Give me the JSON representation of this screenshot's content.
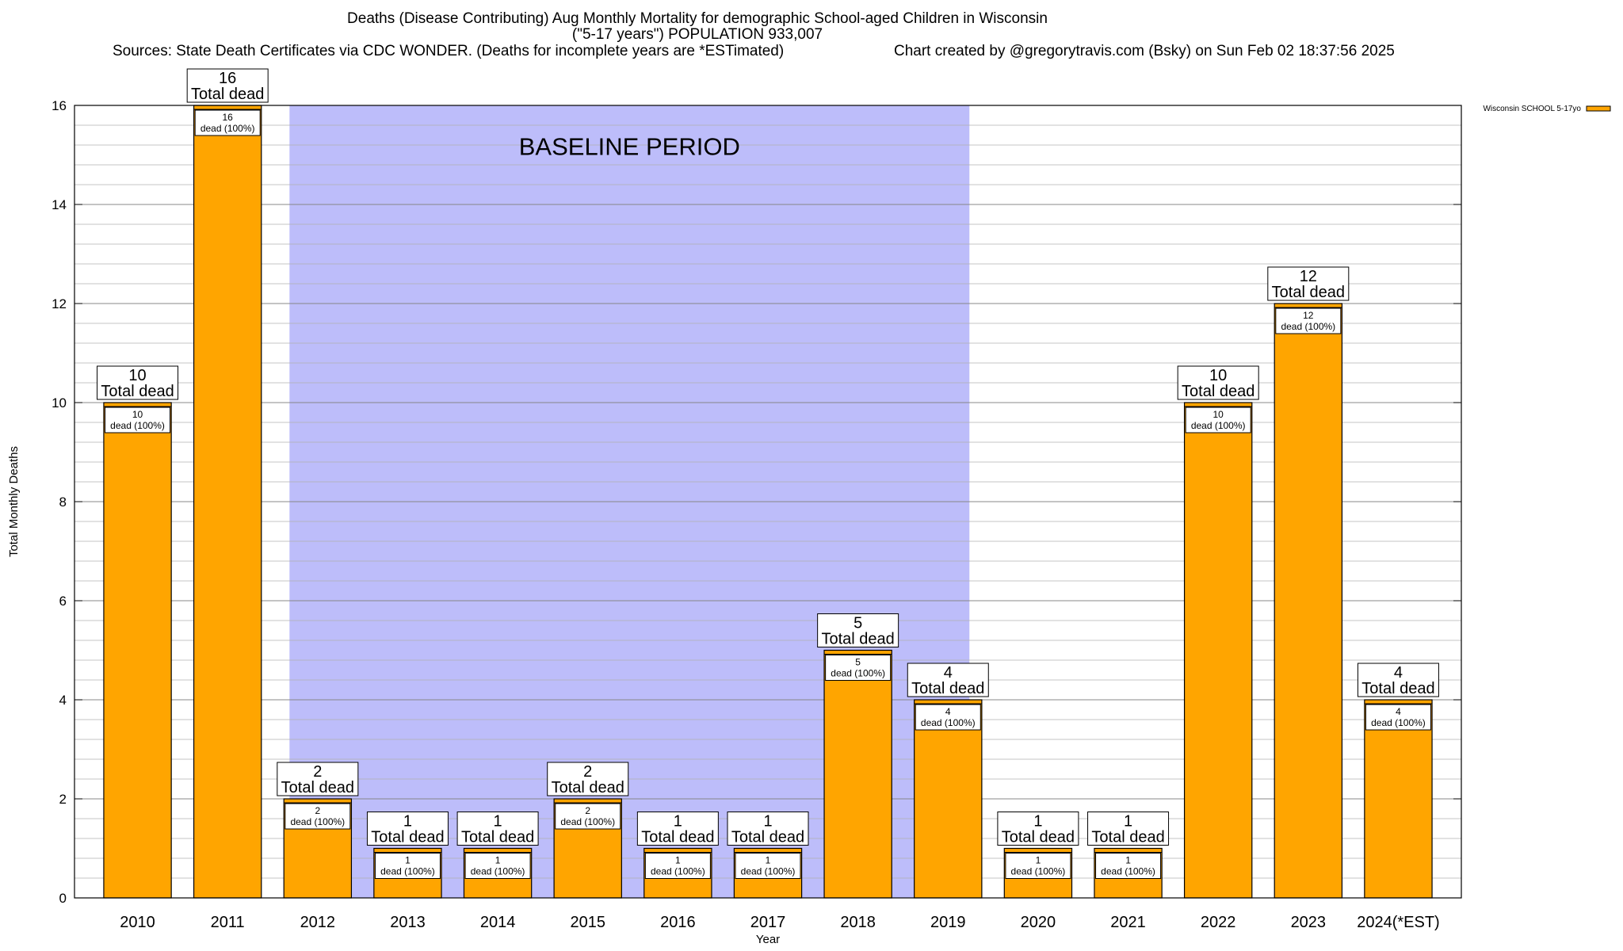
{
  "titles": {
    "line1": "Deaths (Disease Contributing) Aug Monthly Mortality for demographic School-aged Children in Wisconsin",
    "line2": "(\"5-17 years\") POPULATION 933,007",
    "sources": "Sources: State Death Certificates via CDC WONDER. (Deaths for incomplete years are *ESTimated)",
    "credit": "Chart created by @gregorytravis.com (Bsky) on Sun Feb 02 18:37:56 2025"
  },
  "colors": {
    "bar": "#FFA500",
    "baseline_shade": "#BDBDFA",
    "grid": "#b0b0b0"
  },
  "chart_data": {
    "type": "bar",
    "xlabel": "Year",
    "ylabel": "Total Monthly Deaths",
    "ylim": [
      0,
      16
    ],
    "yticks": [
      0,
      2,
      4,
      6,
      8,
      10,
      12,
      14,
      16
    ],
    "categories": [
      "2010",
      "2011",
      "2012",
      "2013",
      "2014",
      "2015",
      "2016",
      "2017",
      "2018",
      "2019",
      "2020",
      "2021",
      "2022",
      "2023",
      "2024(*EST)"
    ],
    "series": [
      {
        "name": "Wisconsin SCHOOL 5-17yo",
        "values": [
          10,
          16,
          2,
          1,
          1,
          2,
          1,
          1,
          5,
          4,
          1,
          1,
          10,
          12,
          4
        ]
      }
    ],
    "top_label_suffix": "Total dead",
    "inner_label_suffix": "dead (100%)",
    "baseline": {
      "label": "BASELINE PERIOD",
      "from_category": "2012",
      "to_category": "2019"
    },
    "legend_position": "top-right",
    "grid": true
  }
}
